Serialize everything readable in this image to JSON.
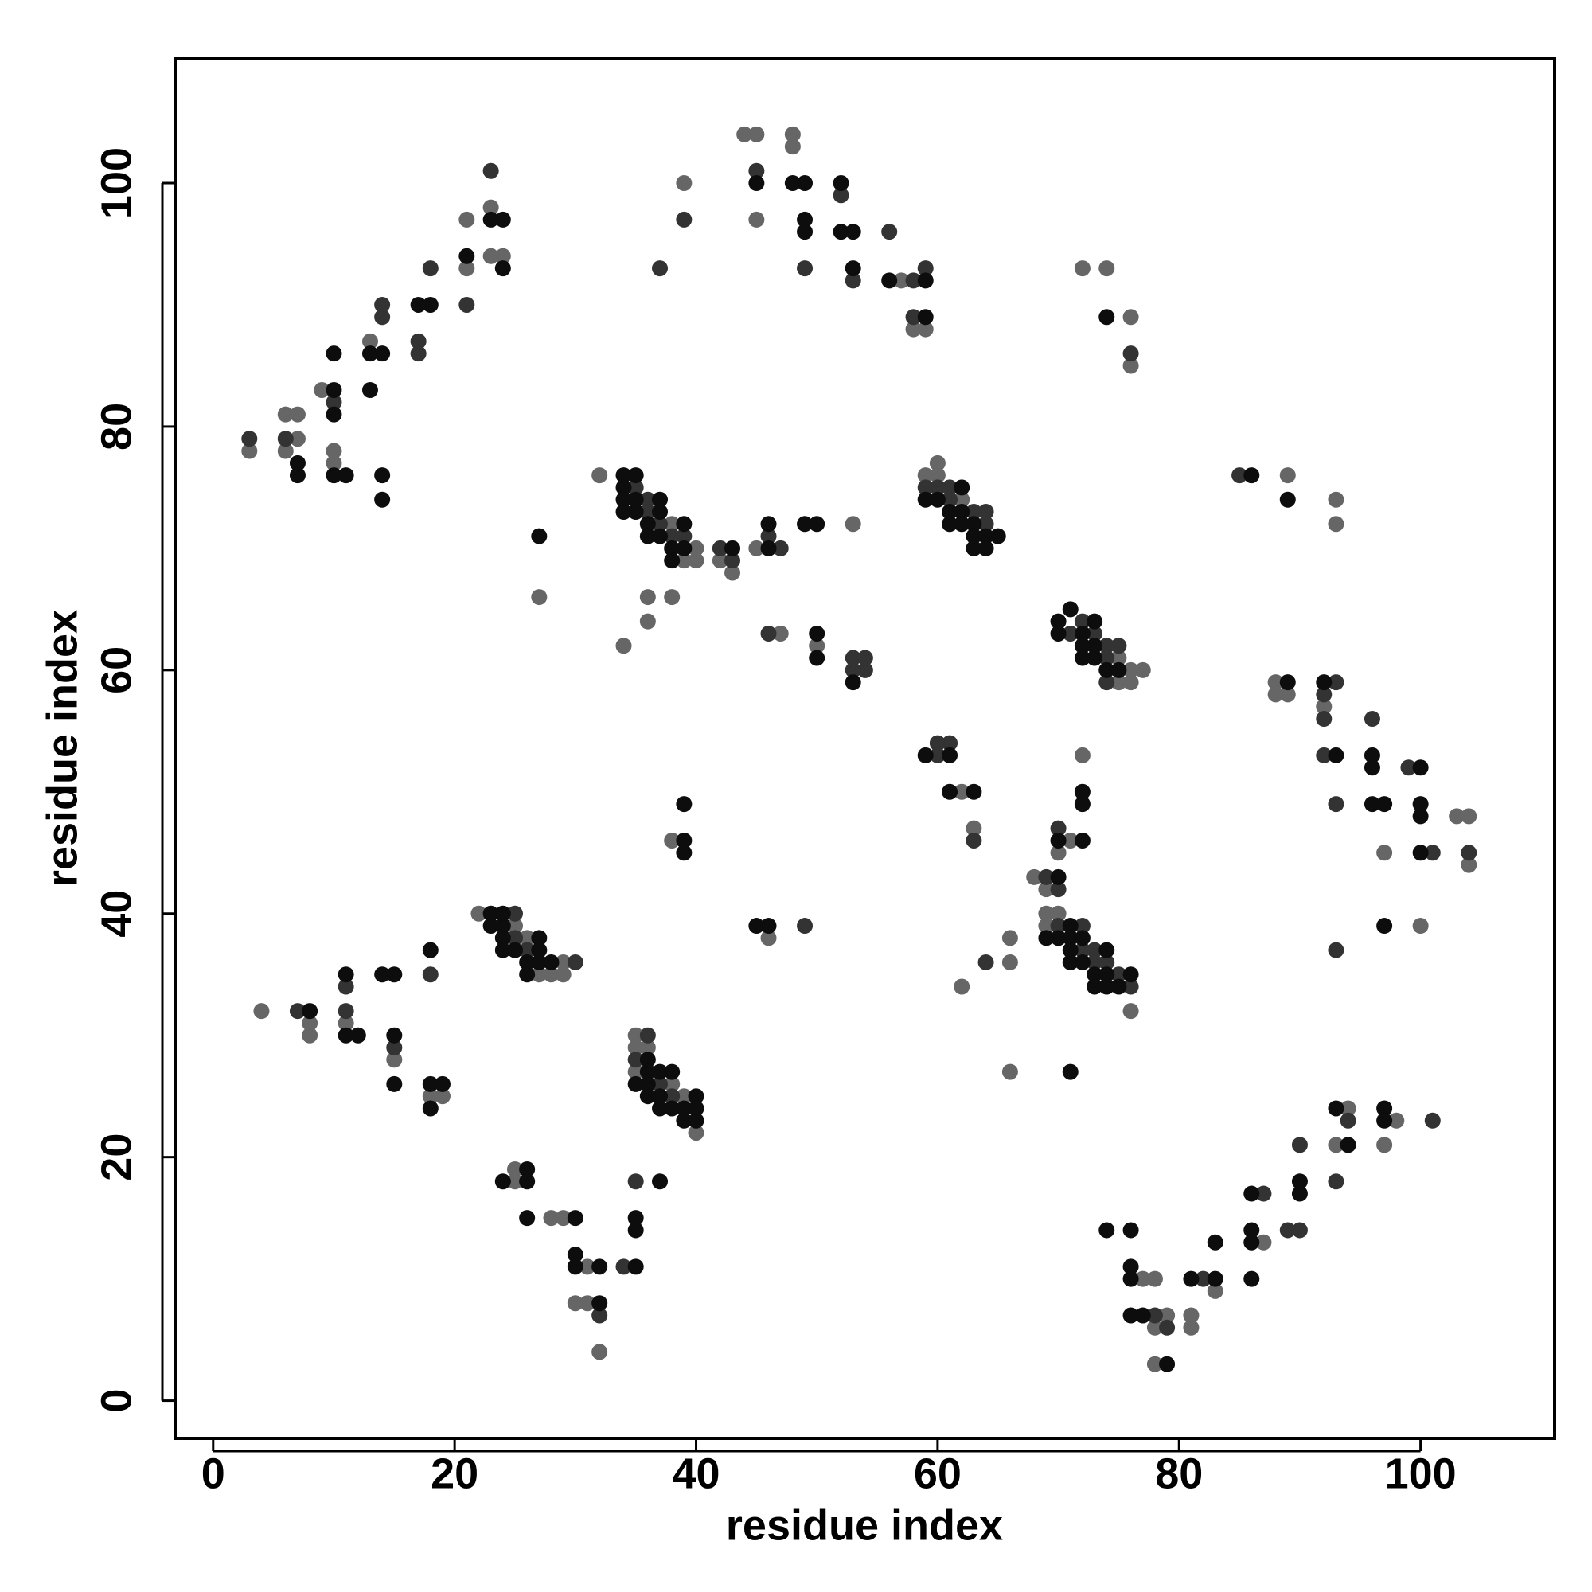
{
  "chart_data": {
    "type": "scatter",
    "x_label": "residue index",
    "y_label": "residue index",
    "xlim": [
      -3.15,
      111.1
    ],
    "ylim": [
      -3.1,
      110.2
    ],
    "xticks": [
      0,
      20,
      40,
      60,
      80,
      100
    ],
    "yticks": [
      0,
      20,
      40,
      60,
      80,
      100
    ],
    "series": [
      {
        "color": "#666666",
        "x": [
          3,
          6,
          7,
          7,
          6,
          9,
          10,
          10,
          13,
          21,
          21,
          23,
          23,
          24,
          39,
          44,
          45,
          45,
          48,
          48,
          57,
          58,
          59,
          72,
          74,
          76,
          76,
          89,
          93,
          93,
          32,
          38,
          40,
          39,
          40,
          42,
          43,
          45,
          53,
          27,
          36,
          38,
          36,
          34,
          47,
          50,
          59,
          60,
          60,
          62,
          75,
          76,
          77,
          75,
          76,
          88,
          88,
          89,
          92,
          103,
          104,
          97,
          104,
          100,
          62,
          63,
          72,
          71,
          70,
          38,
          46,
          68,
          69,
          69,
          70,
          69,
          76,
          66,
          66,
          62,
          66,
          4,
          8,
          8,
          11,
          15,
          18,
          19,
          22,
          25,
          26,
          29,
          27,
          28,
          29,
          35,
          35,
          36,
          35,
          38,
          39,
          40,
          25,
          25,
          28,
          29,
          31,
          30,
          31,
          32,
          77,
          78,
          79,
          78,
          78,
          81,
          81,
          83,
          87,
          94,
          93,
          97,
          98
        ],
        "values": [
          78,
          81,
          81,
          79,
          78,
          83,
          78,
          77,
          87,
          97,
          93,
          98,
          94,
          94,
          100,
          104,
          104,
          97,
          104,
          103,
          92,
          88,
          88,
          93,
          93,
          89,
          85,
          76,
          74,
          72,
          76,
          72,
          70,
          69,
          69,
          69,
          68,
          70,
          72,
          66,
          66,
          66,
          64,
          62,
          63,
          62,
          76,
          77,
          76,
          74,
          61,
          60,
          60,
          59,
          59,
          59,
          58,
          58,
          57,
          48,
          48,
          45,
          44,
          39,
          50,
          47,
          53,
          46,
          45,
          46,
          38,
          43,
          42,
          40,
          40,
          39,
          32,
          38,
          36,
          34,
          27,
          32,
          31,
          30,
          31,
          28,
          25,
          25,
          40,
          39,
          38,
          36,
          35,
          35,
          35,
          30,
          29,
          29,
          27,
          26,
          25,
          22,
          19,
          18,
          15,
          15,
          11,
          8,
          8,
          4,
          10,
          10,
          7,
          6,
          3,
          7,
          6,
          9,
          13,
          24,
          21,
          21,
          23
        ]
      },
      {
        "color": "#333333",
        "x": [
          3,
          6,
          10,
          14,
          14,
          17,
          17,
          18,
          21,
          23,
          39,
          37,
          45,
          49,
          52,
          53,
          56,
          58,
          59,
          58,
          76,
          85,
          35,
          36,
          36,
          37,
          38,
          39,
          42,
          43,
          47,
          46,
          46,
          53,
          54,
          53,
          54,
          59,
          60,
          61,
          61,
          63,
          64,
          64,
          72,
          71,
          73,
          74,
          75,
          74,
          74,
          93,
          92,
          92,
          92,
          96,
          99,
          93,
          101,
          104,
          93,
          60,
          61,
          60,
          63,
          70,
          49,
          69,
          70,
          70,
          72,
          72,
          73,
          73,
          74,
          75,
          76,
          64,
          7,
          11,
          11,
          15,
          18,
          25,
          25,
          26,
          30,
          36,
          35,
          37,
          38,
          35,
          34,
          32,
          78,
          79,
          82,
          87,
          89,
          90,
          90,
          94,
          93,
          101
        ],
        "values": [
          79,
          79,
          82,
          90,
          89,
          87,
          86,
          93,
          90,
          101,
          97,
          93,
          101,
          93,
          99,
          92,
          96,
          92,
          93,
          89,
          86,
          76,
          75,
          74,
          73,
          72,
          71,
          71,
          70,
          69,
          70,
          71,
          63,
          61,
          61,
          60,
          60,
          75,
          75,
          75,
          74,
          73,
          73,
          72,
          64,
          63,
          63,
          62,
          62,
          61,
          59,
          59,
          58,
          56,
          53,
          56,
          52,
          49,
          45,
          45,
          37,
          54,
          54,
          53,
          46,
          47,
          39,
          43,
          42,
          39,
          39,
          37,
          37,
          36,
          36,
          35,
          34,
          36,
          32,
          34,
          32,
          29,
          35,
          40,
          38,
          37,
          36,
          30,
          28,
          26,
          25,
          18,
          11,
          7,
          7,
          6,
          10,
          17,
          14,
          14,
          21,
          23,
          18,
          23
        ]
      },
      {
        "color": "#0d0d0d",
        "x": [
          7,
          7,
          10,
          10,
          10,
          11,
          10,
          13,
          14,
          13,
          14,
          14,
          17,
          18,
          21,
          23,
          24,
          24,
          45,
          48,
          49,
          49,
          49,
          52,
          52,
          53,
          53,
          56,
          59,
          59,
          74,
          86,
          89,
          34,
          35,
          34,
          34,
          35,
          37,
          34,
          35,
          37,
          36,
          39,
          36,
          37,
          38,
          39,
          38,
          43,
          46,
          46,
          49,
          50,
          27,
          50,
          50,
          53,
          62,
          59,
          60,
          61,
          62,
          61,
          62,
          63,
          63,
          64,
          65,
          63,
          64,
          70,
          71,
          73,
          70,
          72,
          72,
          73,
          72,
          73,
          74,
          75,
          89,
          92,
          93,
          96,
          96,
          100,
          96,
          97,
          100,
          100,
          100,
          97,
          59,
          61,
          61,
          63,
          72,
          72,
          70,
          72,
          39,
          39,
          39,
          45,
          46,
          70,
          71,
          69,
          70,
          71,
          72,
          71,
          74,
          71,
          72,
          73,
          74,
          76,
          73,
          74,
          75,
          71,
          8,
          11,
          11,
          12,
          14,
          15,
          15,
          15,
          18,
          18,
          19,
          18,
          23,
          24,
          23,
          24,
          24,
          27,
          24,
          25,
          27,
          26,
          27,
          28,
          26,
          36,
          36,
          37,
          38,
          35,
          36,
          36,
          37,
          40,
          37,
          38,
          39,
          40,
          39,
          40,
          24,
          26,
          26,
          26,
          30,
          37,
          35,
          35,
          30,
          30,
          32,
          35,
          32,
          74,
          76,
          76,
          76,
          76,
          77,
          79,
          81,
          83,
          83,
          86,
          86,
          86,
          86,
          90,
          90,
          93,
          94,
          97,
          97
        ],
        "values": [
          77,
          76,
          83,
          81,
          76,
          76,
          86,
          86,
          86,
          83,
          76,
          74,
          90,
          90,
          94,
          97,
          97,
          93,
          100,
          100,
          100,
          97,
          96,
          100,
          96,
          96,
          93,
          92,
          92,
          89,
          89,
          76,
          74,
          76,
          76,
          75,
          74,
          74,
          74,
          73,
          73,
          73,
          72,
          72,
          71,
          71,
          70,
          70,
          69,
          70,
          70,
          72,
          72,
          72,
          71,
          63,
          61,
          59,
          75,
          74,
          74,
          73,
          73,
          72,
          72,
          72,
          71,
          71,
          71,
          70,
          70,
          64,
          65,
          64,
          63,
          63,
          62,
          62,
          61,
          61,
          60,
          60,
          59,
          59,
          53,
          53,
          52,
          52,
          49,
          49,
          49,
          48,
          45,
          39,
          53,
          53,
          50,
          50,
          50,
          49,
          46,
          46,
          49,
          46,
          45,
          39,
          39,
          43,
          39,
          38,
          38,
          38,
          38,
          37,
          37,
          36,
          36,
          35,
          35,
          35,
          34,
          34,
          34,
          27,
          32,
          35,
          30,
          30,
          35,
          35,
          30,
          26,
          37,
          26,
          26,
          24,
          40,
          40,
          39,
          39,
          38,
          38,
          37,
          37,
          37,
          36,
          36,
          36,
          35,
          28,
          27,
          27,
          27,
          26,
          26,
          25,
          25,
          25,
          24,
          24,
          24,
          24,
          23,
          23,
          18,
          19,
          18,
          15,
          15,
          18,
          15,
          14,
          12,
          11,
          11,
          11,
          8,
          14,
          14,
          11,
          10,
          7,
          7,
          3,
          10,
          10,
          13,
          17,
          14,
          13,
          10,
          18,
          17,
          24,
          21,
          24,
          23
        ]
      }
    ]
  }
}
